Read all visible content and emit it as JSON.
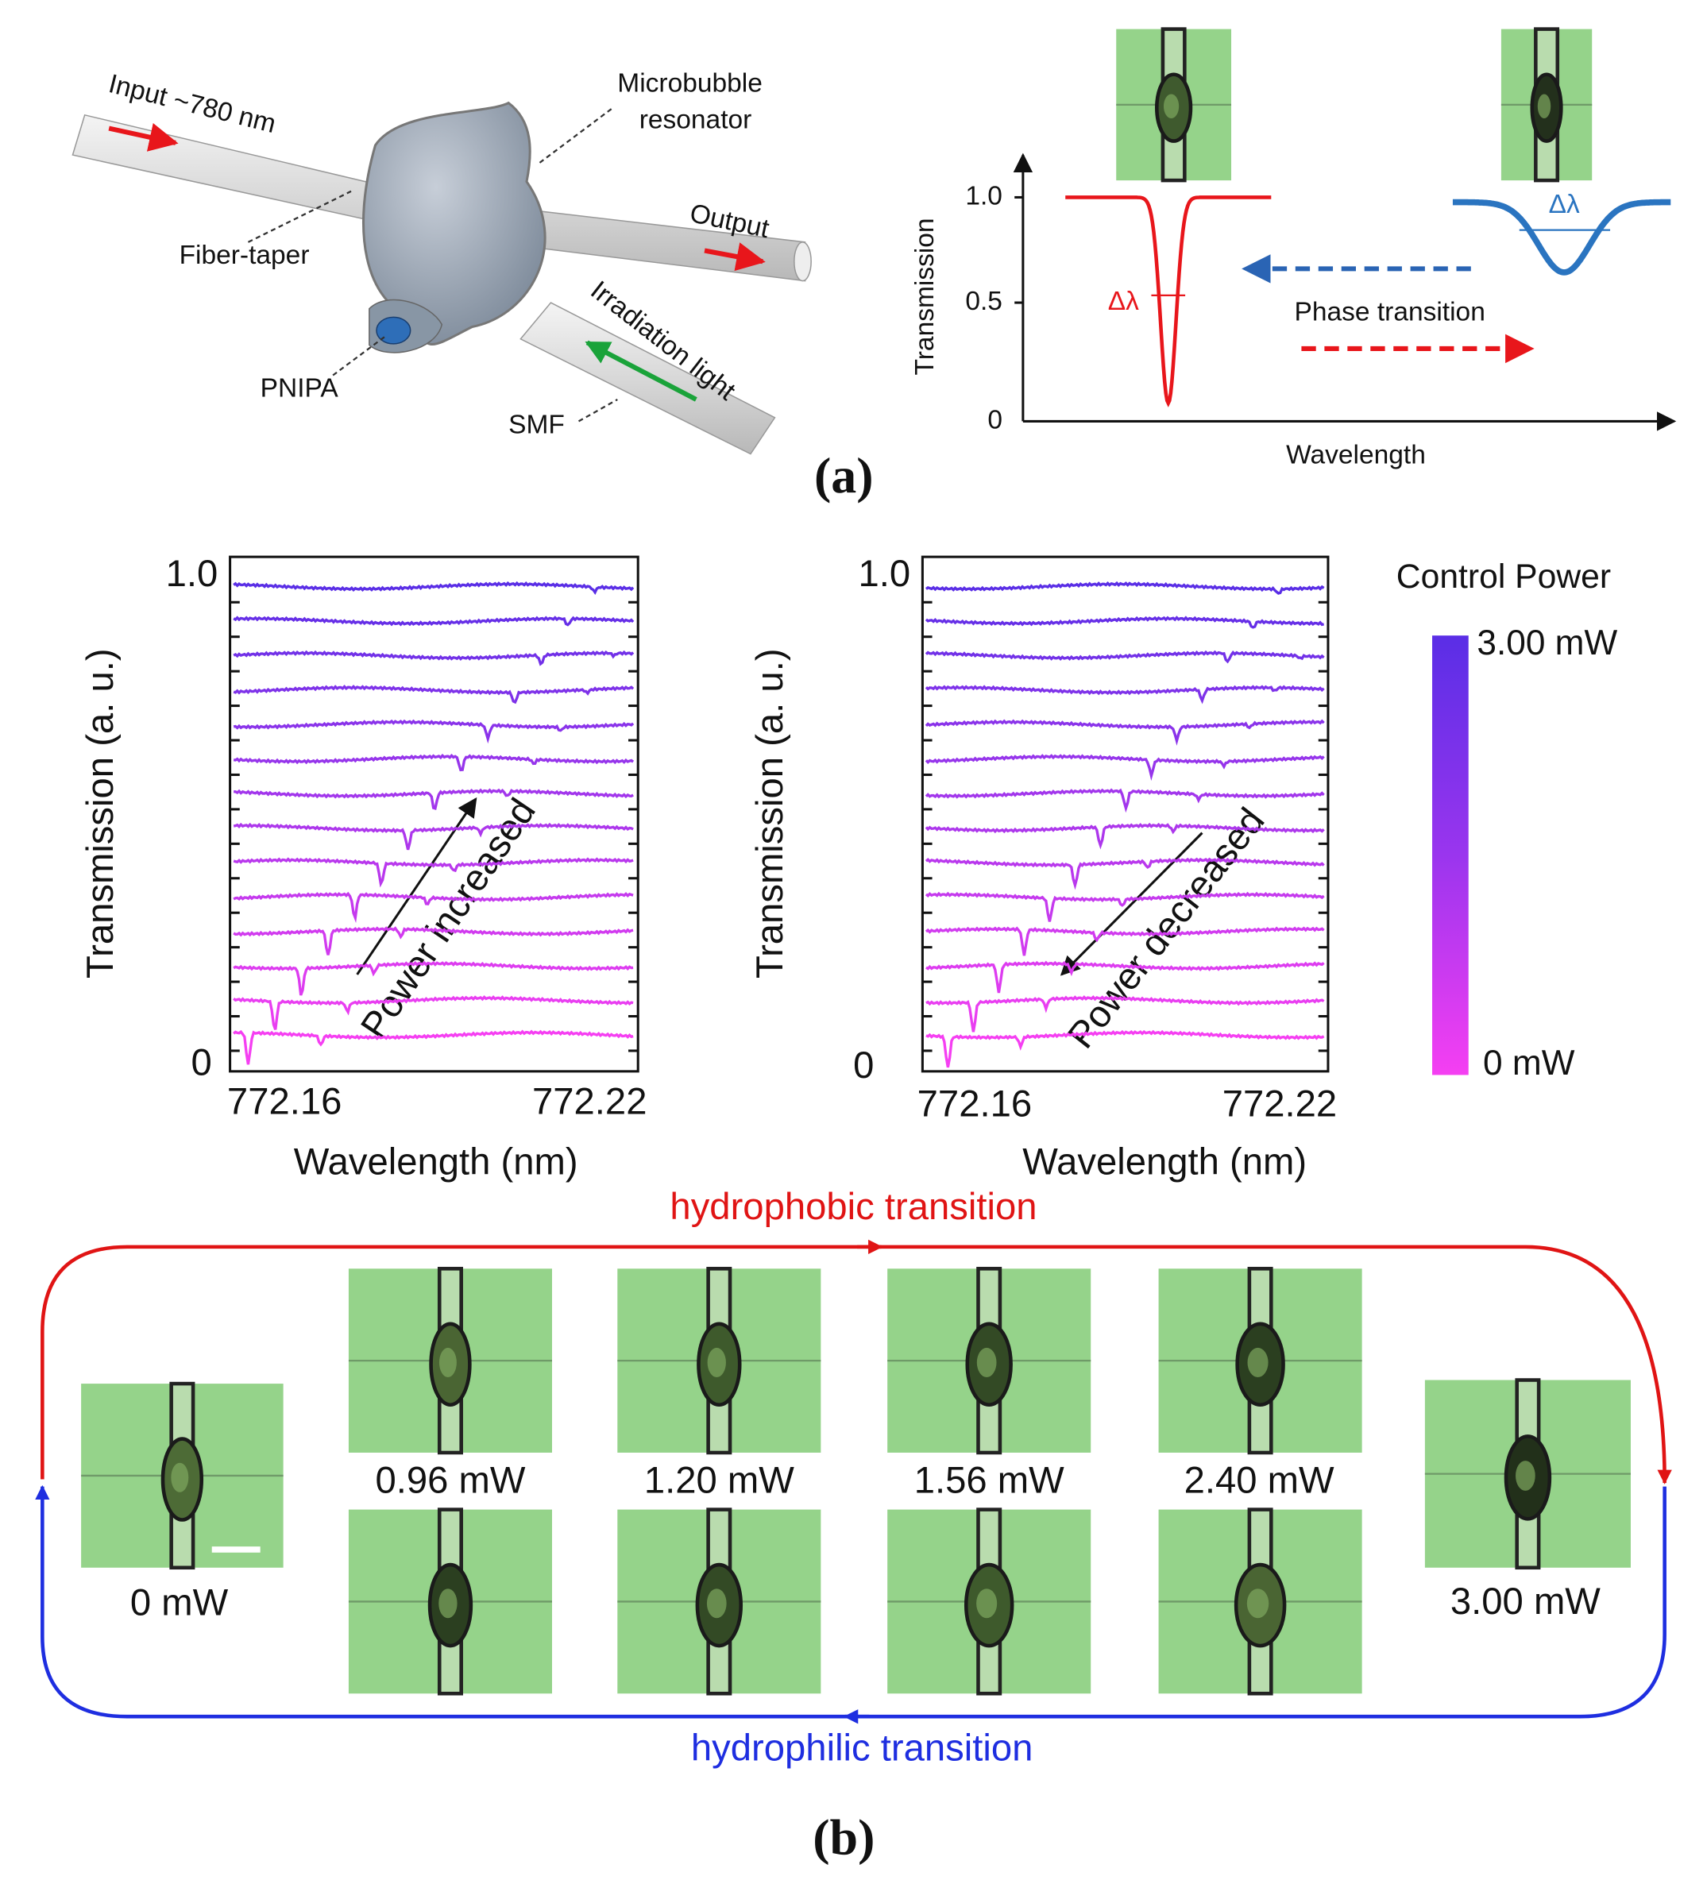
{
  "panel_a": {
    "schematic": {
      "input": "Input ~780 nm",
      "microbubble": [
        "Microbubble",
        "resonator"
      ],
      "fiber_taper": "Fiber-taper",
      "output": "Output",
      "irradiation": "Irradiation light",
      "pnipa": "PNIPA",
      "smf": "SMF"
    },
    "plot": {
      "y_label": "Transmission",
      "x_label": "Wavelength",
      "yticks": [
        "1.0",
        "0.5",
        "0"
      ],
      "delta_red": "Δλ",
      "delta_blue": "Δλ",
      "arrow_label": "Phase transition"
    },
    "label": "(a)"
  },
  "panel_b": {
    "left_plot": {
      "y_label": "Transmission (a. u.)",
      "x_label": "Wavelength (nm)",
      "yticks": [
        "1.0",
        "0"
      ],
      "xticks": [
        "772.16",
        "772.22"
      ],
      "arrow_label": "Power increased"
    },
    "right_plot": {
      "y_label": "Transmission (a. u.)",
      "x_label": "Wavelength (nm)",
      "yticks": [
        "1.0",
        "0"
      ],
      "xticks": [
        "772.16",
        "772.22"
      ],
      "arrow_label": "Power decreased"
    },
    "colorbar": {
      "title": "Control Power",
      "max_label": "3.00 mW",
      "min_label": "0 mW"
    },
    "top_arrow": "hydrophobic transition",
    "bottom_arrow": "hydrophilic transition",
    "image_labels": [
      "0 mW",
      "0.96 mW",
      "1.20 mW",
      "1.56 mW",
      "2.40 mW",
      "3.00 mW"
    ],
    "label": "(b)"
  }
}
